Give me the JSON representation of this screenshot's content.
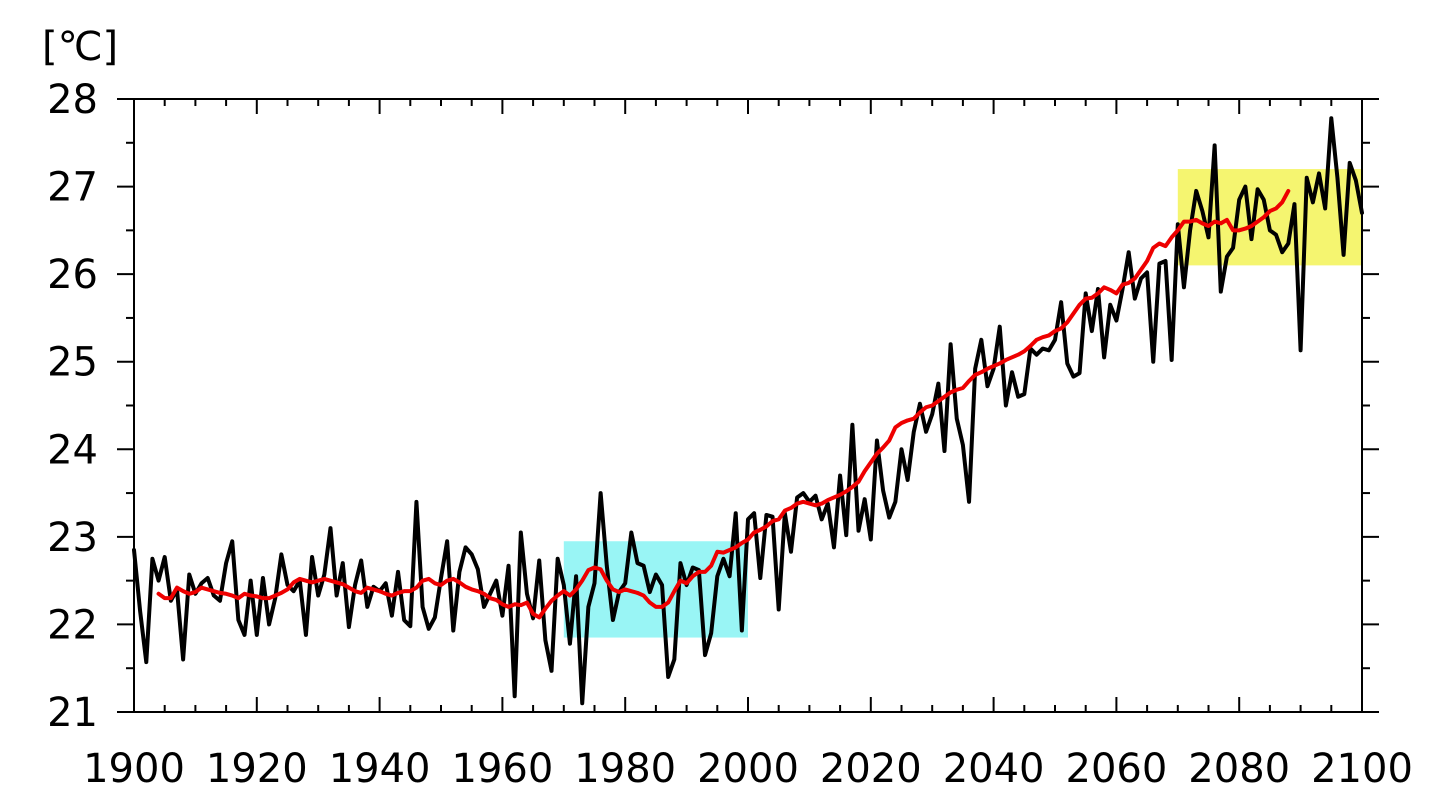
{
  "chart_data": {
    "type": "line",
    "title": "",
    "xlabel": "",
    "ylabel": "[℃]",
    "xlim": [
      1900,
      2100
    ],
    "ylim": [
      21,
      28
    ],
    "x_ticks": [
      1900,
      1920,
      1940,
      1960,
      1980,
      2000,
      2020,
      2040,
      2060,
      2080,
      2100
    ],
    "y_ticks": [
      21,
      22,
      23,
      24,
      25,
      26,
      27,
      28
    ],
    "grid": false,
    "legend": "none",
    "highlight_regions": [
      {
        "x": [
          1970,
          2000
        ],
        "y": [
          21.85,
          22.95
        ],
        "color": "#99f5f5"
      },
      {
        "x": [
          2070,
          2100
        ],
        "y": [
          26.1,
          27.2
        ],
        "color": "#f5f570"
      }
    ],
    "series": [
      {
        "color": "#000000",
        "x_start": 1900,
        "x_step": 1,
        "values": [
          22.85,
          22.15,
          21.57,
          22.75,
          22.5,
          22.77,
          22.27,
          22.4,
          21.6,
          22.57,
          22.35,
          22.47,
          22.53,
          22.33,
          22.27,
          22.7,
          22.95,
          22.05,
          21.88,
          22.5,
          21.88,
          22.53,
          22.0,
          22.3,
          22.8,
          22.45,
          22.38,
          22.5,
          21.88,
          22.77,
          22.33,
          22.57,
          23.1,
          22.33,
          22.7,
          21.97,
          22.45,
          22.73,
          22.2,
          22.43,
          22.38,
          22.47,
          22.1,
          22.6,
          22.05,
          21.98,
          23.4,
          22.2,
          21.95,
          22.08,
          22.53,
          22.95,
          21.93,
          22.6,
          22.88,
          22.8,
          22.63,
          22.2,
          22.35,
          22.5,
          22.1,
          22.67,
          21.18,
          23.05,
          22.35,
          22.07,
          22.73,
          21.82,
          21.47,
          22.75,
          22.45,
          21.78,
          22.55,
          21.1,
          22.2,
          22.47,
          23.5,
          22.67,
          22.05,
          22.37,
          22.47,
          23.05,
          22.7,
          22.67,
          22.37,
          22.57,
          22.45,
          21.4,
          21.6,
          22.7,
          22.45,
          22.65,
          22.62,
          21.65,
          21.9,
          22.55,
          22.75,
          22.55,
          23.27,
          21.93,
          23.2,
          23.27,
          22.53,
          23.25,
          23.23,
          22.17,
          23.27,
          22.83,
          23.45,
          23.5,
          23.4,
          23.47,
          23.2,
          23.38,
          22.88,
          23.7,
          23.02,
          24.28,
          23.07,
          23.43,
          22.97,
          24.1,
          23.53,
          23.22,
          23.4,
          24.0,
          23.65,
          24.2,
          24.52,
          24.2,
          24.4,
          24.75,
          23.98,
          25.2,
          24.35,
          24.05,
          23.4,
          24.92,
          25.25,
          24.72,
          24.92,
          25.4,
          24.5,
          24.88,
          24.6,
          24.63,
          25.15,
          25.08,
          25.15,
          25.13,
          25.25,
          25.68,
          24.98,
          24.83,
          24.87,
          25.78,
          25.35,
          25.83,
          25.05,
          25.65,
          25.47,
          25.83,
          26.25,
          25.72,
          25.95,
          26.02,
          25.0,
          26.12,
          26.15,
          25.02,
          26.57,
          25.85,
          26.5,
          26.95,
          26.72,
          26.42,
          27.47,
          25.8,
          26.2,
          26.3,
          26.85,
          27.0,
          26.4,
          26.97,
          26.85,
          26.5,
          26.45,
          26.25,
          26.35,
          26.8,
          25.13,
          27.1,
          26.82,
          27.15,
          26.75,
          27.78,
          27.1,
          26.22,
          27.27,
          27.07,
          26.7
        ]
      },
      {
        "color": "#ee0000",
        "x_start": 1904,
        "x_step": 1,
        "values": [
          22.35,
          22.3,
          22.3,
          22.42,
          22.38,
          22.35,
          22.37,
          22.42,
          22.4,
          22.38,
          22.36,
          22.35,
          22.33,
          22.3,
          22.35,
          22.33,
          22.32,
          22.3,
          22.3,
          22.33,
          22.36,
          22.4,
          22.48,
          22.52,
          22.5,
          22.48,
          22.5,
          22.52,
          22.5,
          22.48,
          22.46,
          22.42,
          22.38,
          22.36,
          22.42,
          22.4,
          22.38,
          22.35,
          22.33,
          22.36,
          22.38,
          22.38,
          22.42,
          22.5,
          22.52,
          22.47,
          22.45,
          22.5,
          22.52,
          22.48,
          22.43,
          22.4,
          22.38,
          22.35,
          22.3,
          22.28,
          22.23,
          22.2,
          22.23,
          22.22,
          22.25,
          22.12,
          22.08,
          22.18,
          22.27,
          22.33,
          22.38,
          22.33,
          22.4,
          22.5,
          22.62,
          22.65,
          22.63,
          22.5,
          22.4,
          22.37,
          22.4,
          22.38,
          22.36,
          22.33,
          22.25,
          22.2,
          22.2,
          22.25,
          22.38,
          22.5,
          22.47,
          22.55,
          22.6,
          22.6,
          22.67,
          22.83,
          22.82,
          22.85,
          22.88,
          22.93,
          22.97,
          23.05,
          23.08,
          23.12,
          23.18,
          23.2,
          23.3,
          23.33,
          23.38,
          23.4,
          23.38,
          23.36,
          23.38,
          23.42,
          23.45,
          23.48,
          23.52,
          23.57,
          23.63,
          23.75,
          23.85,
          23.95,
          24.02,
          24.1,
          24.25,
          24.3,
          24.33,
          24.35,
          24.42,
          24.48,
          24.5,
          24.55,
          24.6,
          24.65,
          24.68,
          24.7,
          24.78,
          24.85,
          24.88,
          24.92,
          24.95,
          24.98,
          25.02,
          25.05,
          25.08,
          25.12,
          25.18,
          25.25,
          25.28,
          25.3,
          25.35,
          25.38,
          25.45,
          25.55,
          25.65,
          25.72,
          25.73,
          25.78,
          25.85,
          25.82,
          25.78,
          25.88,
          25.9,
          25.95,
          26.05,
          26.15,
          26.3,
          26.35,
          26.32,
          26.42,
          26.5,
          26.6,
          26.6,
          26.62,
          26.58,
          26.55,
          26.6,
          26.58,
          26.62,
          26.5,
          26.5,
          26.52,
          26.55,
          26.6,
          26.65,
          26.72,
          26.75,
          26.82,
          26.95
        ]
      }
    ]
  }
}
